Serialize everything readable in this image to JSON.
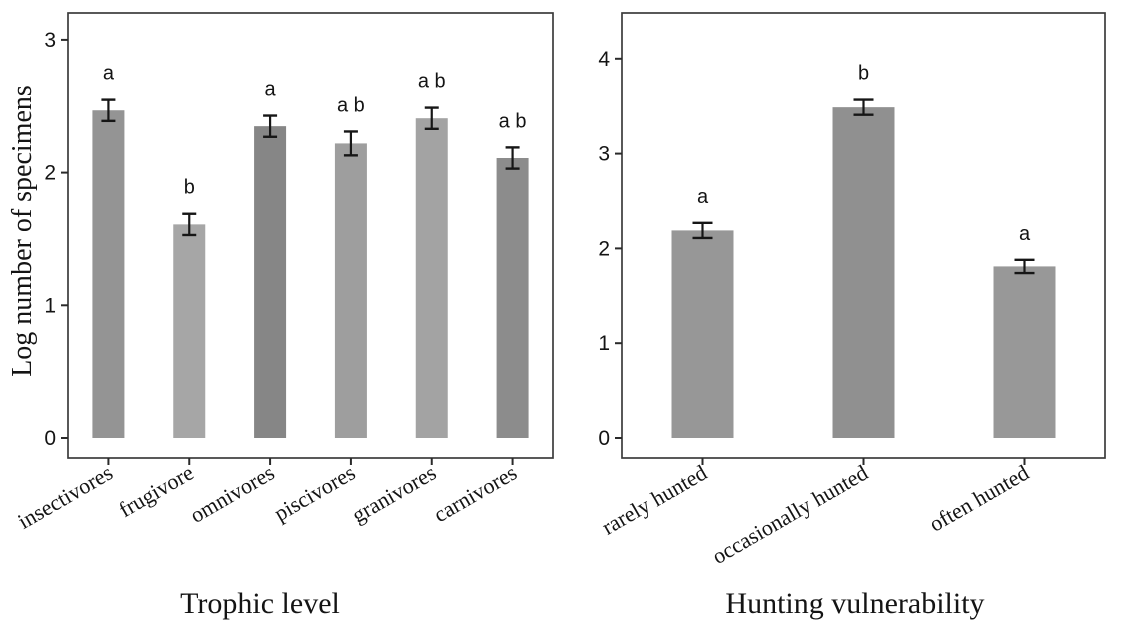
{
  "style": {
    "background": "#ffffff",
    "frame_color": "#3c3c3c",
    "tick_color": "#2a2a2a",
    "text_color": "#141414",
    "error_bar_color": "#161616"
  },
  "chart_data": [
    {
      "type": "bar",
      "title": "",
      "xlabel": "Trophic level",
      "ylabel": "Log number of specimens",
      "categories": [
        "insectivores",
        "frugivore",
        "omnivores",
        "piscivores",
        "granivores",
        "carnivores"
      ],
      "values": [
        2.47,
        1.61,
        2.35,
        2.22,
        2.41,
        2.11
      ],
      "errors": [
        0.08,
        0.08,
        0.08,
        0.09,
        0.08,
        0.08
      ],
      "sig_letters": [
        "a",
        "b",
        "a",
        "a b",
        "a b",
        "a b"
      ],
      "bar_colors": [
        "#949494",
        "#a6a6a6",
        "#868686",
        "#9e9e9e",
        "#a3a3a3",
        "#8c8c8c"
      ],
      "ylim": [
        0,
        3.2
      ],
      "yticks": [
        0,
        1,
        2,
        3
      ],
      "grid": false,
      "legend": null,
      "error_bar_style": "plus-minus SE, capped I-beam"
    },
    {
      "type": "bar",
      "title": "",
      "xlabel": "Hunting vulnerability",
      "ylabel": "",
      "categories": [
        "rarely hunted",
        "occasionally hunted",
        "often hunted"
      ],
      "values": [
        2.19,
        3.49,
        1.81
      ],
      "errors": [
        0.08,
        0.08,
        0.07
      ],
      "sig_letters": [
        "a",
        "b",
        "a"
      ],
      "bar_colors": [
        "#979797",
        "#909090",
        "#989898"
      ],
      "ylim": [
        0,
        4.47
      ],
      "yticks": [
        0,
        1,
        2,
        3,
        4
      ],
      "grid": false,
      "legend": null,
      "error_bar_style": "plus-minus SE, capped I-beam"
    }
  ]
}
